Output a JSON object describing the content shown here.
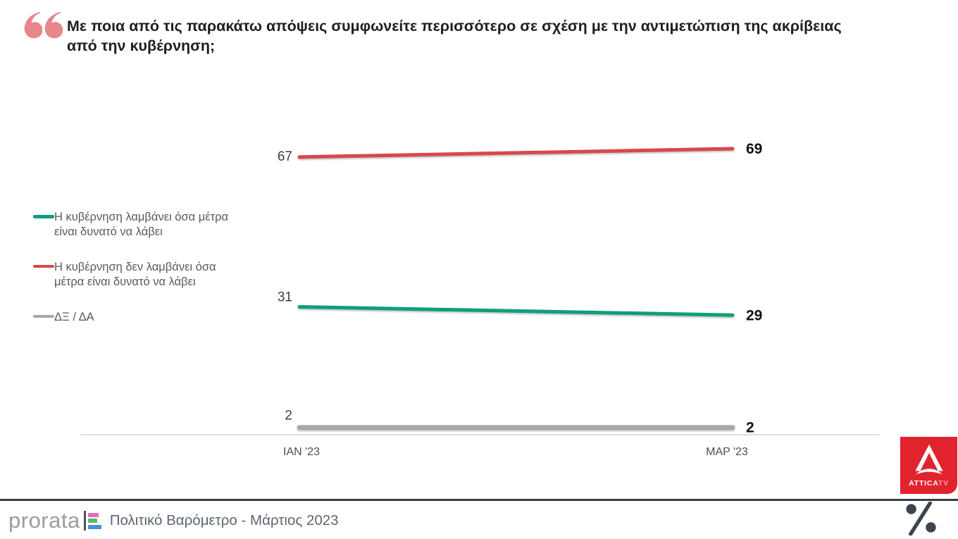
{
  "title": "Με ποια από τις παρακάτω απόψεις συμφωνείτε περισσότερο σε σχέση με την αντιμετώπιση της ακρίβειας\nαπό την κυβέρνηση;",
  "chart_data": {
    "type": "line",
    "categories": [
      "ΙΑΝ '23",
      "ΜΑΡ '23"
    ],
    "series": [
      {
        "name": "Η κυβέρνηση λαμβάνει όσα μέτρα είναι δυνατό να λάβει",
        "values": [
          31,
          29
        ],
        "color": "#0f9e7b"
      },
      {
        "name": "Η κυβέρνηση δεν λαμβάνει όσα μέτρα είναι δυνατό να λάβει",
        "values": [
          67,
          69
        ],
        "color": "#d9484b"
      },
      {
        "name": "ΔΞ / ΔΑ",
        "values": [
          2,
          2
        ],
        "color": "#a8a8a8"
      }
    ],
    "ylim": [
      0,
      100
    ],
    "grid": false,
    "legend_position": "left",
    "value_labels": "both-ends"
  },
  "footer": {
    "brand": "prorata",
    "caption": "Πολιτικό Βαρόμετρο - Μάρτιος 2023"
  },
  "logos": {
    "attica_line1": "ATTICA",
    "attica_line2": "TV"
  },
  "icons": {
    "quote": "open-quote-icon",
    "percent": "percent-logo-icon"
  },
  "colors": {
    "series_green": "#0f9e7b",
    "series_red": "#d9484b",
    "series_gray": "#a8a8a8",
    "attica_red": "#e1232e",
    "quote_pink": "#e8878b",
    "percent_dark": "#3d4450"
  }
}
